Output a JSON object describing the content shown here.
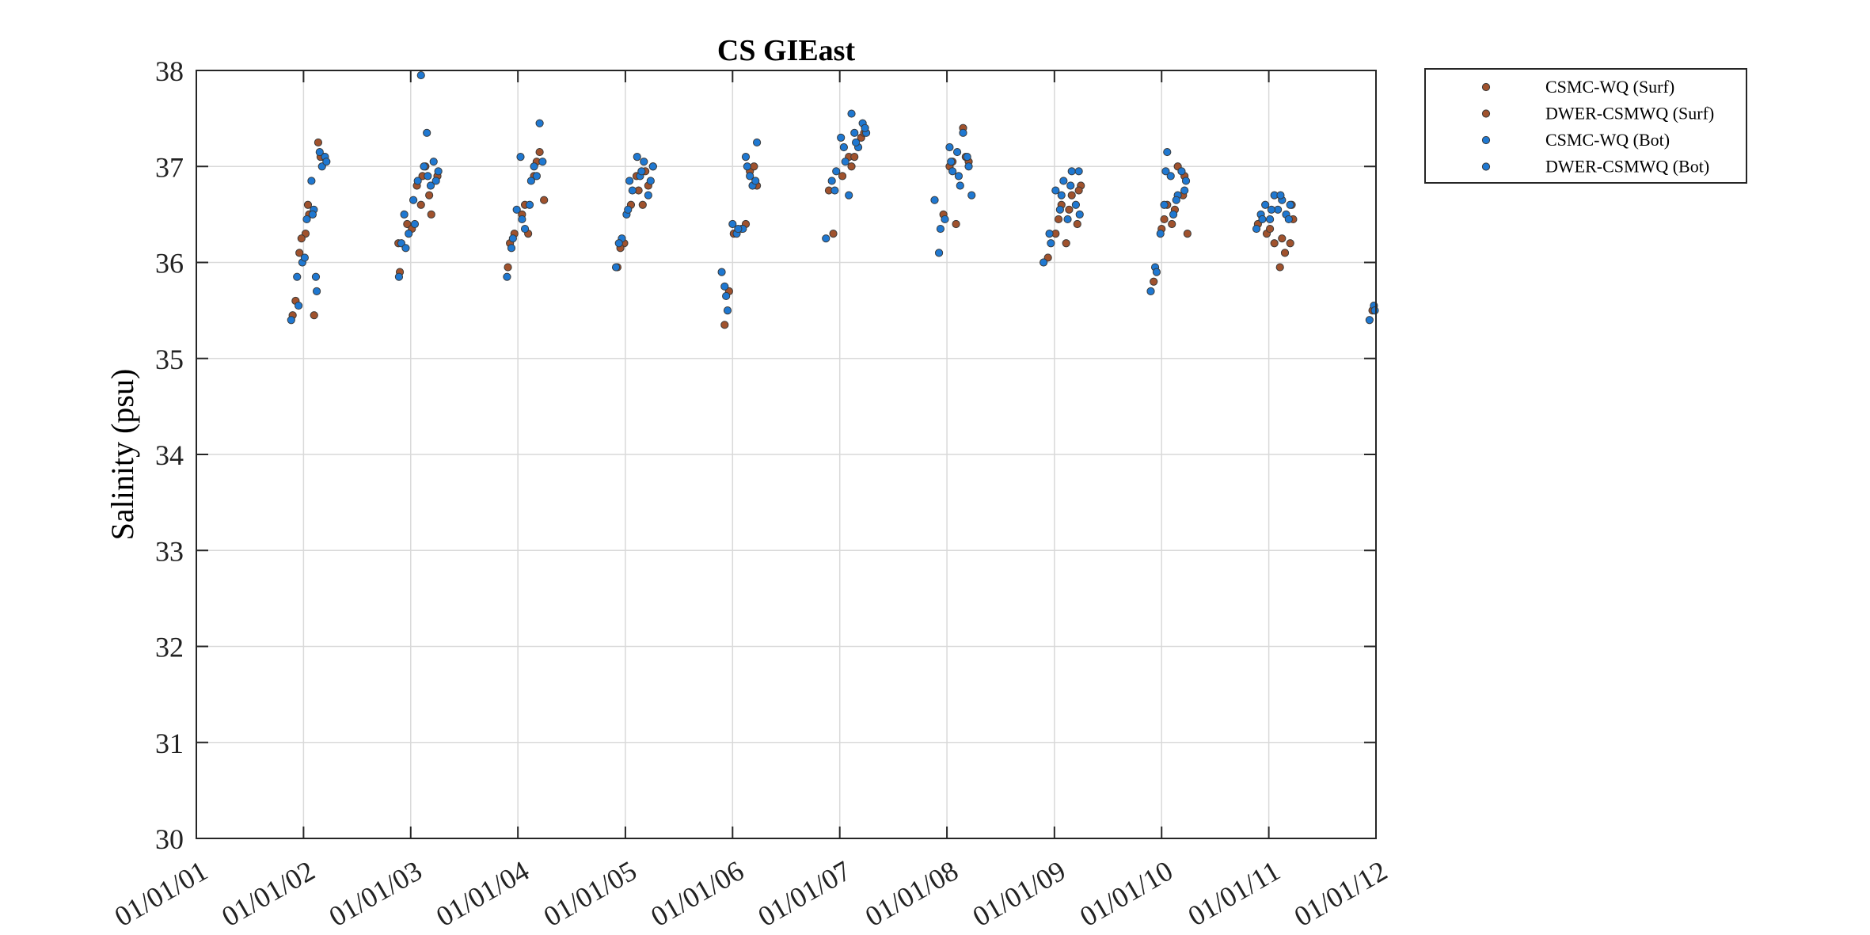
{
  "chart_data": {
    "type": "scatter",
    "title": "CS GIEast",
    "xlabel": "",
    "ylabel": "Salinity (psu)",
    "ylim": [
      30,
      38
    ],
    "yticks": [
      "30",
      "31",
      "32",
      "33",
      "34",
      "35",
      "36",
      "37",
      "38"
    ],
    "xlim": [
      "2001-01-01",
      "2012-01-01"
    ],
    "xticks": [
      "01/01/01",
      "01/01/02",
      "01/01/03",
      "01/01/04",
      "01/01/05",
      "01/01/06",
      "01/01/07",
      "01/01/08",
      "01/01/09",
      "01/01/10",
      "01/01/11",
      "01/01/12"
    ],
    "grid": true,
    "legend_position": "outside-top-right",
    "series": [
      {
        "name": "CSMC-WQ (Surf)",
        "color": "#a0522d",
        "points": [
          [
            "2001-12-05",
            35.6
          ],
          [
            "2001-12-18",
            36.1
          ],
          [
            "2002-01-08",
            36.3
          ],
          [
            "2002-01-16",
            36.6
          ],
          [
            "2002-02-06",
            35.45
          ],
          [
            "2002-02-20",
            37.25
          ],
          [
            "2002-03-10",
            37.1
          ],
          [
            "2002-11-20",
            36.2
          ],
          [
            "2002-12-20",
            36.4
          ],
          [
            "2003-01-22",
            36.8
          ],
          [
            "2003-02-05",
            36.6
          ],
          [
            "2003-02-20",
            37.0
          ],
          [
            "2003-03-12",
            36.5
          ],
          [
            "2003-04-02",
            36.9
          ],
          [
            "2003-11-28",
            35.95
          ],
          [
            "2003-12-20",
            36.3
          ],
          [
            "2004-01-15",
            36.5
          ],
          [
            "2004-02-05",
            36.3
          ],
          [
            "2004-02-25",
            36.9
          ],
          [
            "2004-03-15",
            37.15
          ],
          [
            "2004-03-30",
            36.65
          ],
          [
            "2004-12-05",
            35.95
          ],
          [
            "2004-12-28",
            36.2
          ],
          [
            "2005-01-20",
            36.6
          ],
          [
            "2005-02-08",
            36.9
          ],
          [
            "2005-03-01",
            36.6
          ],
          [
            "2005-03-20",
            36.8
          ],
          [
            "2005-04-05",
            37.0
          ],
          [
            "2005-12-05",
            35.35
          ],
          [
            "2006-01-05",
            36.3
          ],
          [
            "2006-02-01",
            36.35
          ],
          [
            "2006-03-01",
            36.95
          ],
          [
            "2006-03-25",
            36.8
          ],
          [
            "2006-11-25",
            36.75
          ],
          [
            "2007-01-10",
            36.9
          ],
          [
            "2007-02-01",
            37.1
          ],
          [
            "2007-02-20",
            37.1
          ],
          [
            "2007-03-15",
            37.3
          ],
          [
            "2007-12-20",
            36.5
          ],
          [
            "2008-01-10",
            37.0
          ],
          [
            "2008-02-01",
            36.4
          ],
          [
            "2008-02-25",
            37.4
          ],
          [
            "2008-03-15",
            37.05
          ],
          [
            "2008-12-10",
            36.05
          ],
          [
            "2009-01-05",
            36.3
          ],
          [
            "2009-01-25",
            36.6
          ],
          [
            "2009-02-10",
            36.2
          ],
          [
            "2009-03-01",
            36.7
          ],
          [
            "2009-03-20",
            36.4
          ],
          [
            "2009-04-01",
            36.8
          ],
          [
            "2009-12-05",
            35.8
          ],
          [
            "2010-01-01",
            36.35
          ],
          [
            "2010-01-20",
            36.6
          ],
          [
            "2010-02-05",
            36.4
          ],
          [
            "2010-02-25",
            37.0
          ],
          [
            "2010-03-15",
            36.7
          ],
          [
            "2010-03-30",
            36.3
          ],
          [
            "2010-11-25",
            36.4
          ],
          [
            "2010-12-25",
            36.3
          ],
          [
            "2011-01-20",
            36.2
          ],
          [
            "2011-02-08",
            35.95
          ],
          [
            "2011-02-25",
            36.1
          ],
          [
            "2011-03-15",
            36.2
          ],
          [
            "2011-03-25",
            36.45
          ],
          [
            "2011-12-20",
            35.5
          ]
        ]
      },
      {
        "name": "DWER-CSMWQ (Surf)",
        "color": "#a0522d",
        "points": [
          [
            "2001-11-25",
            35.45
          ],
          [
            "2001-12-25",
            36.25
          ],
          [
            "2002-01-20",
            36.5
          ],
          [
            "2002-02-28",
            37.1
          ],
          [
            "2002-11-25",
            35.9
          ],
          [
            "2003-01-05",
            36.35
          ],
          [
            "2003-02-10",
            36.9
          ],
          [
            "2003-03-05",
            36.7
          ],
          [
            "2003-12-05",
            36.2
          ],
          [
            "2004-01-25",
            36.6
          ],
          [
            "2004-03-05",
            37.05
          ],
          [
            "2004-12-15",
            36.15
          ],
          [
            "2005-02-15",
            36.75
          ],
          [
            "2005-03-10",
            36.95
          ],
          [
            "2005-12-20",
            35.7
          ],
          [
            "2006-02-15",
            36.4
          ],
          [
            "2006-03-15",
            37.0
          ],
          [
            "2006-12-10",
            36.3
          ],
          [
            "2007-02-10",
            37.0
          ],
          [
            "2007-03-25",
            37.35
          ],
          [
            "2008-01-20",
            37.05
          ],
          [
            "2008-03-05",
            37.1
          ],
          [
            "2009-01-15",
            36.45
          ],
          [
            "2009-02-20",
            36.55
          ],
          [
            "2009-03-25",
            36.75
          ],
          [
            "2010-01-10",
            36.45
          ],
          [
            "2010-02-15",
            36.55
          ],
          [
            "2010-03-20",
            36.9
          ],
          [
            "2011-01-05",
            36.35
          ],
          [
            "2011-02-15",
            36.25
          ],
          [
            "2011-03-20",
            36.6
          ]
        ]
      },
      {
        "name": "CSMC-WQ (Bot)",
        "color": "#1f78d1",
        "points": [
          [
            "2001-11-20",
            35.4
          ],
          [
            "2001-12-10",
            35.85
          ],
          [
            "2001-12-28",
            36.0
          ],
          [
            "2002-01-12",
            36.45
          ],
          [
            "2002-01-28",
            36.85
          ],
          [
            "2002-02-05",
            36.55
          ],
          [
            "2002-02-12",
            35.85
          ],
          [
            "2002-02-15",
            35.7
          ],
          [
            "2002-02-25",
            37.15
          ],
          [
            "2002-03-05",
            37.0
          ],
          [
            "2002-03-15",
            37.1
          ],
          [
            "2002-11-22",
            35.85
          ],
          [
            "2002-11-30",
            36.2
          ],
          [
            "2002-12-10",
            36.5
          ],
          [
            "2002-12-25",
            36.3
          ],
          [
            "2003-01-10",
            36.65
          ],
          [
            "2003-01-25",
            36.85
          ],
          [
            "2003-02-05",
            37.95
          ],
          [
            "2003-02-15",
            37.0
          ],
          [
            "2003-02-25",
            37.35
          ],
          [
            "2003-03-10",
            36.8
          ],
          [
            "2003-03-20",
            37.05
          ],
          [
            "2003-04-05",
            36.95
          ],
          [
            "2003-11-25",
            35.85
          ],
          [
            "2003-12-10",
            36.15
          ],
          [
            "2003-12-28",
            36.55
          ],
          [
            "2004-01-10",
            37.1
          ],
          [
            "2004-01-25",
            36.35
          ],
          [
            "2004-02-10",
            36.6
          ],
          [
            "2004-02-25",
            37.0
          ],
          [
            "2004-03-15",
            37.45
          ],
          [
            "2004-03-25",
            37.05
          ],
          [
            "2004-11-30",
            35.95
          ],
          [
            "2004-12-20",
            36.25
          ],
          [
            "2005-01-05",
            36.5
          ],
          [
            "2005-01-15",
            36.85
          ],
          [
            "2005-01-25",
            36.75
          ],
          [
            "2005-02-10",
            37.1
          ],
          [
            "2005-02-20",
            36.9
          ],
          [
            "2005-03-05",
            37.05
          ],
          [
            "2005-03-20",
            36.7
          ],
          [
            "2005-04-05",
            37.0
          ],
          [
            "2005-11-25",
            35.9
          ],
          [
            "2005-12-05",
            35.75
          ],
          [
            "2005-12-15",
            35.5
          ],
          [
            "2006-01-01",
            36.4
          ],
          [
            "2006-01-15",
            36.3
          ],
          [
            "2006-02-05",
            36.35
          ],
          [
            "2006-02-15",
            37.1
          ],
          [
            "2006-03-01",
            36.9
          ],
          [
            "2006-03-10",
            36.8
          ],
          [
            "2006-03-25",
            37.25
          ],
          [
            "2006-11-15",
            36.25
          ],
          [
            "2006-12-05",
            36.85
          ],
          [
            "2006-12-20",
            36.95
          ],
          [
            "2007-01-05",
            37.3
          ],
          [
            "2007-01-20",
            37.05
          ],
          [
            "2007-02-01",
            36.7
          ],
          [
            "2007-02-10",
            37.55
          ],
          [
            "2007-02-20",
            37.35
          ],
          [
            "2007-03-05",
            37.2
          ],
          [
            "2007-03-20",
            37.45
          ],
          [
            "2007-04-01",
            37.35
          ],
          [
            "2007-11-20",
            36.65
          ],
          [
            "2007-12-05",
            36.1
          ],
          [
            "2007-12-25",
            36.45
          ],
          [
            "2008-01-10",
            37.2
          ],
          [
            "2008-01-20",
            36.95
          ],
          [
            "2008-02-05",
            37.15
          ],
          [
            "2008-02-15",
            36.8
          ],
          [
            "2008-02-25",
            37.35
          ],
          [
            "2008-03-10",
            37.1
          ],
          [
            "2008-03-25",
            36.7
          ],
          [
            "2008-11-25",
            36.0
          ],
          [
            "2008-12-15",
            36.3
          ],
          [
            "2009-01-05",
            36.75
          ],
          [
            "2009-01-20",
            36.55
          ],
          [
            "2009-02-01",
            36.85
          ],
          [
            "2009-02-15",
            36.45
          ],
          [
            "2009-03-01",
            36.95
          ],
          [
            "2009-03-15",
            36.6
          ],
          [
            "2009-03-25",
            36.95
          ],
          [
            "2009-11-25",
            35.7
          ],
          [
            "2009-12-10",
            35.95
          ],
          [
            "2009-12-28",
            36.3
          ],
          [
            "2010-01-10",
            36.6
          ],
          [
            "2010-01-20",
            37.15
          ],
          [
            "2010-02-01",
            36.9
          ],
          [
            "2010-02-10",
            36.5
          ],
          [
            "2010-02-25",
            36.7
          ],
          [
            "2010-03-10",
            36.95
          ],
          [
            "2010-03-25",
            36.85
          ],
          [
            "2010-11-20",
            36.35
          ],
          [
            "2010-12-05",
            36.5
          ],
          [
            "2010-12-20",
            36.6
          ],
          [
            "2011-01-05",
            36.45
          ],
          [
            "2011-01-20",
            36.7
          ],
          [
            "2011-02-01",
            36.55
          ],
          [
            "2011-02-15",
            36.65
          ],
          [
            "2011-03-01",
            36.5
          ],
          [
            "2011-03-15",
            36.6
          ],
          [
            "2011-12-10",
            35.4
          ],
          [
            "2011-12-25",
            35.55
          ]
        ]
      },
      {
        "name": "DWER-CSMWQ (Bot)",
        "color": "#1f78d1",
        "points": [
          [
            "2001-12-15",
            35.55
          ],
          [
            "2002-01-05",
            36.05
          ],
          [
            "2002-02-01",
            36.5
          ],
          [
            "2002-03-20",
            37.05
          ],
          [
            "2002-12-15",
            36.15
          ],
          [
            "2003-01-15",
            36.4
          ],
          [
            "2003-02-28",
            36.9
          ],
          [
            "2003-03-28",
            36.85
          ],
          [
            "2003-12-15",
            36.25
          ],
          [
            "2004-01-15",
            36.45
          ],
          [
            "2004-02-15",
            36.85
          ],
          [
            "2004-03-05",
            36.9
          ],
          [
            "2004-12-10",
            36.2
          ],
          [
            "2005-01-10",
            36.55
          ],
          [
            "2005-02-25",
            36.95
          ],
          [
            "2005-03-28",
            36.85
          ],
          [
            "2005-12-10",
            35.65
          ],
          [
            "2006-01-20",
            36.35
          ],
          [
            "2006-02-20",
            37.0
          ],
          [
            "2006-03-20",
            36.85
          ],
          [
            "2006-12-15",
            36.75
          ],
          [
            "2007-01-15",
            37.2
          ],
          [
            "2007-02-25",
            37.25
          ],
          [
            "2007-03-28",
            37.4
          ],
          [
            "2007-12-10",
            36.35
          ],
          [
            "2008-01-15",
            37.05
          ],
          [
            "2008-02-10",
            36.9
          ],
          [
            "2008-03-15",
            37.0
          ],
          [
            "2008-12-20",
            36.2
          ],
          [
            "2009-01-25",
            36.7
          ],
          [
            "2009-02-25",
            36.8
          ],
          [
            "2009-03-28",
            36.5
          ],
          [
            "2009-12-15",
            35.9
          ],
          [
            "2010-01-15",
            36.95
          ],
          [
            "2010-02-20",
            36.65
          ],
          [
            "2010-03-20",
            36.75
          ],
          [
            "2010-12-10",
            36.45
          ],
          [
            "2011-01-10",
            36.55
          ],
          [
            "2011-02-10",
            36.7
          ],
          [
            "2011-03-10",
            36.45
          ],
          [
            "2011-12-28",
            35.5
          ]
        ]
      }
    ]
  }
}
